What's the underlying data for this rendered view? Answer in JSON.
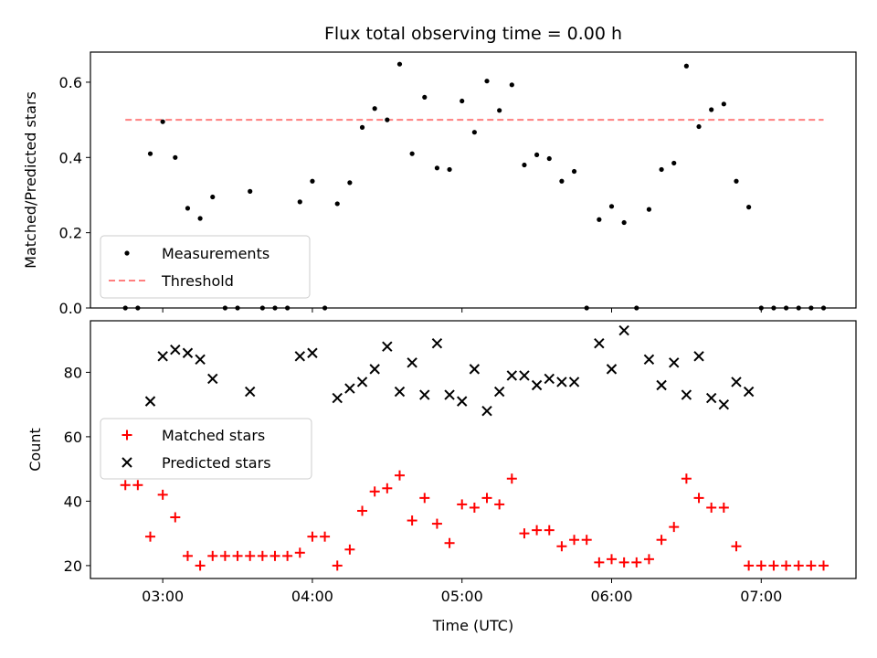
{
  "chart_data": [
    {
      "type": "scatter",
      "title": "Flux total observing time = 0.00 h",
      "xlabel": "",
      "ylabel": "Matched/Predicted stars",
      "ylim": [
        0,
        0.68
      ],
      "yticks": [
        0.0,
        0.2,
        0.4,
        0.6
      ],
      "ytick_labels": [
        "0.0",
        "0.2",
        "0.4",
        "0.6"
      ],
      "legend": {
        "placement": "lower-left",
        "entries": [
          "Measurements",
          "Threshold"
        ]
      },
      "series": [
        {
          "name": "Measurements",
          "marker": "dot",
          "color": "#000000",
          "points": [
            [
              "02:45",
              0.0
            ],
            [
              "02:50",
              0.0
            ],
            [
              "02:55",
              0.41
            ],
            [
              "03:00",
              0.495
            ],
            [
              "03:05",
              0.4
            ],
            [
              "03:10",
              0.265
            ],
            [
              "03:15",
              0.238
            ],
            [
              "03:20",
              0.295
            ],
            [
              "03:25",
              0.0
            ],
            [
              "03:30",
              0.0
            ],
            [
              "03:35",
              0.31
            ],
            [
              "03:40",
              0.0
            ],
            [
              "03:45",
              0.0
            ],
            [
              "03:50",
              0.0
            ],
            [
              "03:55",
              0.282
            ],
            [
              "04:00",
              0.337
            ],
            [
              "04:05",
              0.0
            ],
            [
              "04:10",
              0.277
            ],
            [
              "04:15",
              0.333
            ],
            [
              "04:20",
              0.48
            ],
            [
              "04:25",
              0.53
            ],
            [
              "04:30",
              0.5
            ],
            [
              "04:35",
              0.648
            ],
            [
              "04:40",
              0.41
            ],
            [
              "04:45",
              0.56
            ],
            [
              "04:50",
              0.372
            ],
            [
              "04:55",
              0.368
            ],
            [
              "05:00",
              0.55
            ],
            [
              "05:05",
              0.467
            ],
            [
              "05:10",
              0.603
            ],
            [
              "05:15",
              0.525
            ],
            [
              "05:20",
              0.593
            ],
            [
              "05:25",
              0.38
            ],
            [
              "05:30",
              0.407
            ],
            [
              "05:35",
              0.397
            ],
            [
              "05:40",
              0.337
            ],
            [
              "05:45",
              0.363
            ],
            [
              "05:50",
              0.0
            ],
            [
              "05:55",
              0.235
            ],
            [
              "06:00",
              0.27
            ],
            [
              "06:05",
              0.227
            ],
            [
              "06:10",
              0.0
            ],
            [
              "06:15",
              0.262
            ],
            [
              "06:20",
              0.368
            ],
            [
              "06:25",
              0.385
            ],
            [
              "06:30",
              0.643
            ],
            [
              "06:35",
              0.482
            ],
            [
              "06:40",
              0.527
            ],
            [
              "06:45",
              0.542
            ],
            [
              "06:50",
              0.337
            ],
            [
              "06:55",
              0.268
            ],
            [
              "07:00",
              0.0
            ],
            [
              "07:05",
              0.0
            ],
            [
              "07:10",
              0.0
            ],
            [
              "07:15",
              0.0
            ],
            [
              "07:20",
              0.0
            ],
            [
              "07:25",
              0.0
            ]
          ]
        },
        {
          "name": "Threshold",
          "style": "dashed",
          "color": "#ff7f7f",
          "points": [
            [
              "02:45",
              0.5
            ],
            [
              "07:25",
              0.5
            ]
          ]
        }
      ]
    },
    {
      "type": "scatter",
      "title": "",
      "xlabel": "Time (UTC)",
      "ylabel": "Count",
      "xlim": [
        "02:31",
        "07:38"
      ],
      "xticks": [
        "03:00",
        "04:00",
        "05:00",
        "06:00",
        "07:00"
      ],
      "ylim": [
        16,
        96
      ],
      "yticks": [
        20,
        40,
        60,
        80
      ],
      "legend": {
        "placement": "center-left",
        "entries": [
          "Matched stars",
          "Predicted stars"
        ]
      },
      "series": [
        {
          "name": "Matched stars",
          "marker": "plus",
          "color": "#ff0000",
          "points": [
            [
              "02:45",
              45
            ],
            [
              "02:50",
              45
            ],
            [
              "02:55",
              29
            ],
            [
              "03:00",
              42
            ],
            [
              "03:05",
              35
            ],
            [
              "03:10",
              23
            ],
            [
              "03:15",
              20
            ],
            [
              "03:20",
              23
            ],
            [
              "03:25",
              23
            ],
            [
              "03:30",
              23
            ],
            [
              "03:35",
              23
            ],
            [
              "03:40",
              23
            ],
            [
              "03:45",
              23
            ],
            [
              "03:50",
              23
            ],
            [
              "03:55",
              24
            ],
            [
              "04:00",
              29
            ],
            [
              "04:05",
              29
            ],
            [
              "04:10",
              20
            ],
            [
              "04:15",
              25
            ],
            [
              "04:20",
              37
            ],
            [
              "04:25",
              43
            ],
            [
              "04:30",
              44
            ],
            [
              "04:35",
              48
            ],
            [
              "04:40",
              34
            ],
            [
              "04:45",
              41
            ],
            [
              "04:50",
              33
            ],
            [
              "04:55",
              27
            ],
            [
              "05:00",
              39
            ],
            [
              "05:05",
              38
            ],
            [
              "05:10",
              41
            ],
            [
              "05:15",
              39
            ],
            [
              "05:20",
              47
            ],
            [
              "05:25",
              30
            ],
            [
              "05:30",
              31
            ],
            [
              "05:35",
              31
            ],
            [
              "05:40",
              26
            ],
            [
              "05:45",
              28
            ],
            [
              "05:50",
              28
            ],
            [
              "05:55",
              21
            ],
            [
              "06:00",
              22
            ],
            [
              "06:05",
              21
            ],
            [
              "06:10",
              21
            ],
            [
              "06:15",
              22
            ],
            [
              "06:20",
              28
            ],
            [
              "06:25",
              32
            ],
            [
              "06:30",
              47
            ],
            [
              "06:35",
              41
            ],
            [
              "06:40",
              38
            ],
            [
              "06:45",
              38
            ],
            [
              "06:50",
              26
            ],
            [
              "06:55",
              20
            ],
            [
              "07:00",
              20
            ],
            [
              "07:05",
              20
            ],
            [
              "07:10",
              20
            ],
            [
              "07:15",
              20
            ],
            [
              "07:20",
              20
            ],
            [
              "07:25",
              20
            ]
          ]
        },
        {
          "name": "Predicted stars",
          "marker": "x",
          "color": "#000000",
          "points": [
            [
              "02:55",
              71
            ],
            [
              "03:00",
              85
            ],
            [
              "03:05",
              87
            ],
            [
              "03:10",
              86
            ],
            [
              "03:15",
              84
            ],
            [
              "03:20",
              78
            ],
            [
              "03:35",
              74
            ],
            [
              "03:55",
              85
            ],
            [
              "04:00",
              86
            ],
            [
              "04:10",
              72
            ],
            [
              "04:15",
              75
            ],
            [
              "04:20",
              77
            ],
            [
              "04:25",
              81
            ],
            [
              "04:30",
              88
            ],
            [
              "04:35",
              74
            ],
            [
              "04:40",
              83
            ],
            [
              "04:45",
              73
            ],
            [
              "04:50",
              89
            ],
            [
              "04:55",
              73
            ],
            [
              "05:00",
              71
            ],
            [
              "05:05",
              81
            ],
            [
              "05:10",
              68
            ],
            [
              "05:15",
              74
            ],
            [
              "05:20",
              79
            ],
            [
              "05:25",
              79
            ],
            [
              "05:30",
              76
            ],
            [
              "05:35",
              78
            ],
            [
              "05:40",
              77
            ],
            [
              "05:45",
              77
            ],
            [
              "05:55",
              89
            ],
            [
              "06:00",
              81
            ],
            [
              "06:05",
              93
            ],
            [
              "06:15",
              84
            ],
            [
              "06:20",
              76
            ],
            [
              "06:25",
              83
            ],
            [
              "06:30",
              73
            ],
            [
              "06:35",
              85
            ],
            [
              "06:40",
              72
            ],
            [
              "06:45",
              70
            ],
            [
              "06:50",
              77
            ],
            [
              "06:55",
              74
            ]
          ]
        }
      ]
    }
  ]
}
